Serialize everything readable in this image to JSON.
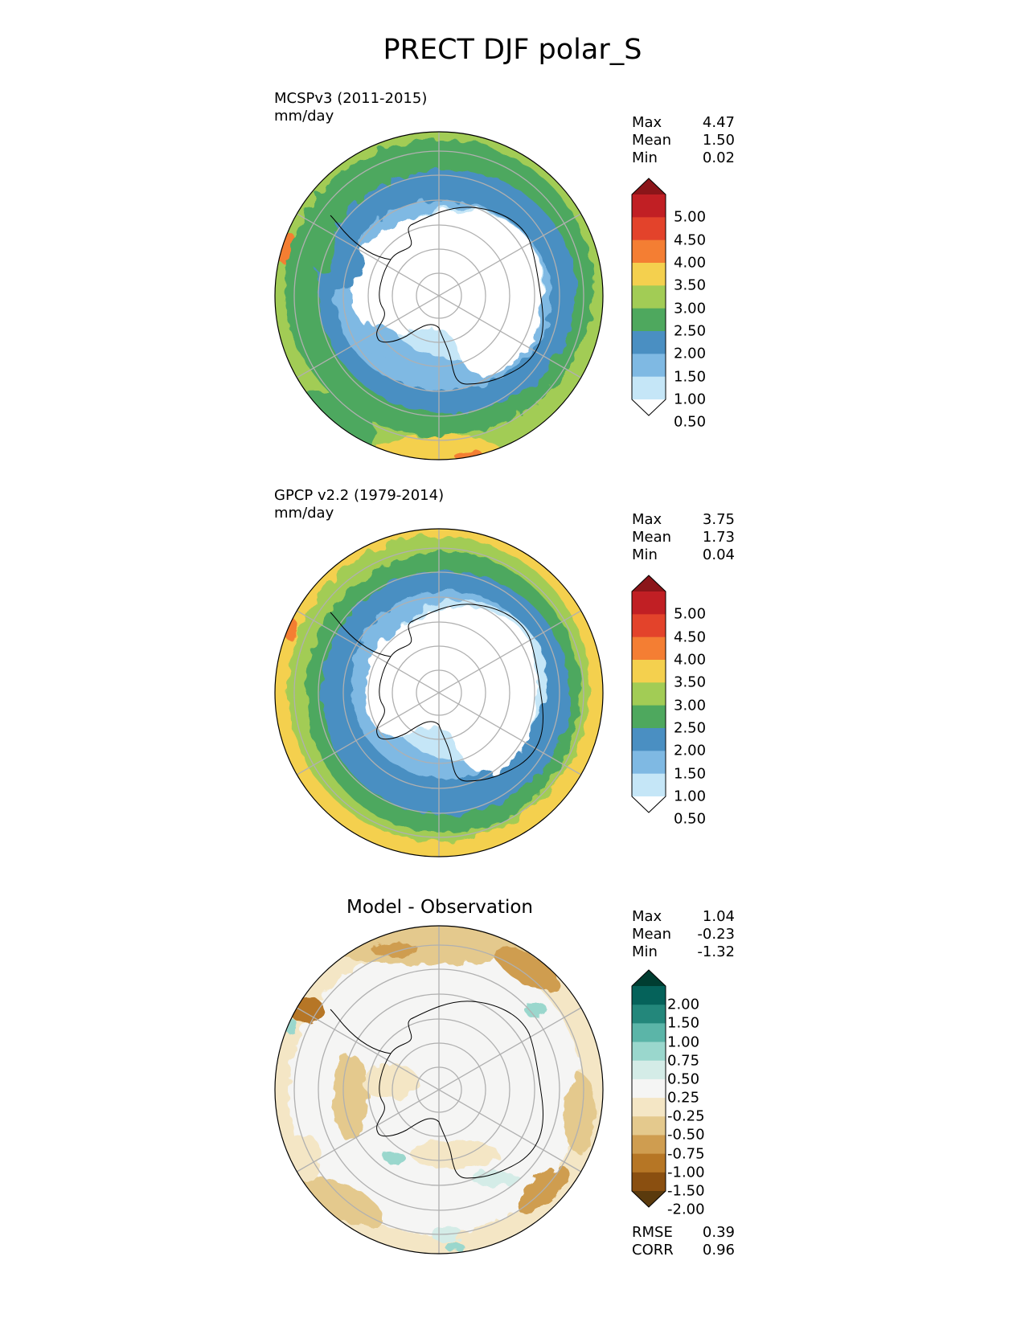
{
  "title": "PRECT DJF polar_S",
  "panels": [
    {
      "id": "test",
      "name": "MCSPv3 (2011-2015)",
      "units": "mm/day",
      "stats": {
        "max": "4.47",
        "mean": "1.50",
        "min": "0.02"
      },
      "stat_labels": {
        "max": "Max",
        "mean": "Mean",
        "min": "Min"
      },
      "colorbar_labels": [
        "5.00",
        "4.50",
        "4.00",
        "3.50",
        "3.00",
        "2.50",
        "2.00",
        "1.50",
        "1.00",
        "0.50"
      ]
    },
    {
      "id": "ref",
      "name": "GPCP v2.2 (1979-2014)",
      "units": "mm/day",
      "stats": {
        "max": "3.75",
        "mean": "1.73",
        "min": "0.04"
      },
      "stat_labels": {
        "max": "Max",
        "mean": "Mean",
        "min": "Min"
      },
      "colorbar_labels": [
        "5.00",
        "4.50",
        "4.00",
        "3.50",
        "3.00",
        "2.50",
        "2.00",
        "1.50",
        "1.00",
        "0.50"
      ]
    },
    {
      "id": "diff",
      "name": "Model - Observation",
      "stats": {
        "max": "1.04",
        "mean": "-0.23",
        "min": "-1.32"
      },
      "stat_labels": {
        "max": "Max",
        "mean": "Mean",
        "min": "Min"
      },
      "colorbar_labels": [
        "2.00",
        "1.50",
        "1.00",
        "0.75",
        "0.50",
        "0.25",
        "-0.25",
        "-0.50",
        "-0.75",
        "-1.00",
        "-1.50",
        "-2.00"
      ],
      "metrics": {
        "rmse_label": "RMSE",
        "rmse": "0.39",
        "corr_label": "CORR",
        "corr": "0.96"
      }
    }
  ],
  "colors": {
    "precip_scale": [
      "#ffffff",
      "#c5e6f7",
      "#7fb9e3",
      "#4a8fc2",
      "#4ea85e",
      "#a2cc55",
      "#f4d04e",
      "#f47e33",
      "#e3432b",
      "#c11f24",
      "#8b1519"
    ],
    "diff_scale": [
      "#5a3a0d",
      "#8a4f10",
      "#b67625",
      "#cf9d50",
      "#e4c98d",
      "#f4e6c5",
      "#f5f5f4",
      "#d4ece7",
      "#9ad7cd",
      "#5bb5a8",
      "#23877b",
      "#05625a",
      "#003d31"
    ]
  }
}
